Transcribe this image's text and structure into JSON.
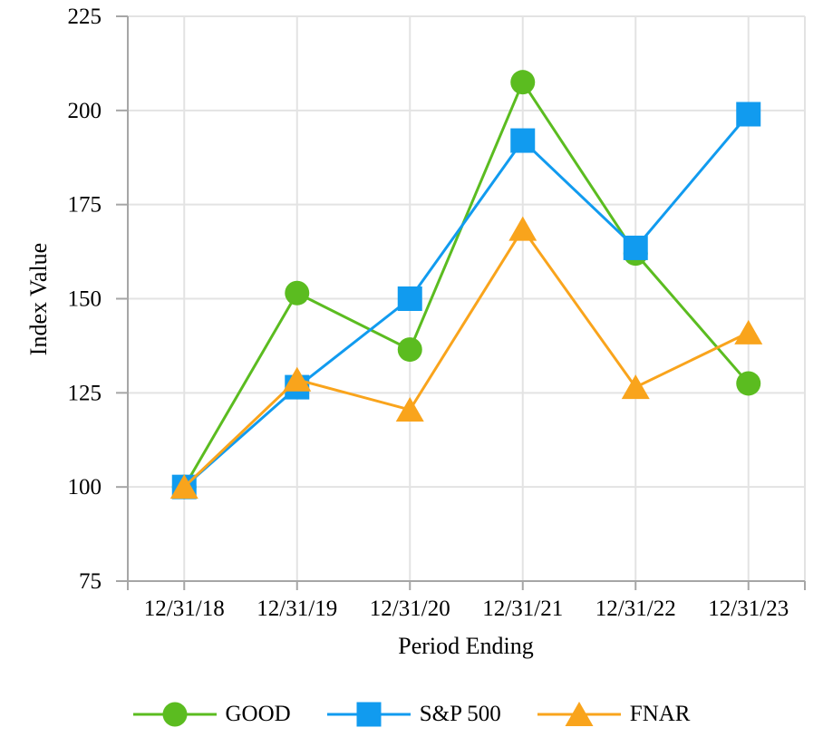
{
  "chart_data": {
    "type": "line",
    "title": "",
    "xlabel": "Period Ending",
    "ylabel": "Index Value",
    "categories": [
      "12/31/18",
      "12/31/19",
      "12/31/20",
      "12/31/21",
      "12/31/22",
      "12/31/23"
    ],
    "series": [
      {
        "name": "GOOD",
        "marker": "circle",
        "color": "#5BBC20",
        "values": [
          100,
          151.5,
          136.5,
          207.5,
          162,
          127.5
        ]
      },
      {
        "name": "S&P 500",
        "marker": "square",
        "color": "#119BEF",
        "values": [
          100,
          126.5,
          150,
          192,
          163.5,
          199
        ]
      },
      {
        "name": "FNAR",
        "marker": "triangle",
        "color": "#F9A41C",
        "values": [
          100,
          128.5,
          120.5,
          168.5,
          126.5,
          141
        ]
      }
    ],
    "ylim": [
      75,
      225
    ],
    "yticks": [
      75,
      100,
      125,
      150,
      175,
      200,
      225
    ],
    "grid": true,
    "legend_position": "bottom",
    "colors": {
      "gridline": "#E3E3E3",
      "axis": "#A6A6A6",
      "text": "#000000",
      "background": "#FFFFFF"
    }
  }
}
